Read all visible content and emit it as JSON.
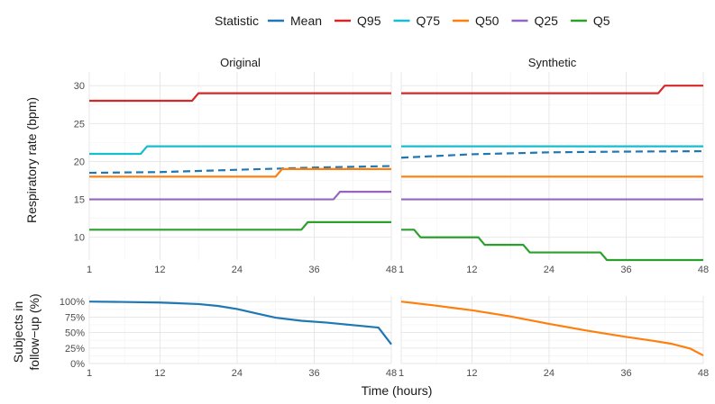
{
  "chart_data": {
    "type": "line",
    "legend": {
      "title": "Statistic",
      "position": "top",
      "items": [
        {
          "name": "Mean",
          "color": "#1f77b4",
          "dashed": true
        },
        {
          "name": "Q95",
          "color": "#d62728",
          "dashed": false
        },
        {
          "name": "Q75",
          "color": "#17becf",
          "dashed": false
        },
        {
          "name": "Q50",
          "color": "#ff7f0e",
          "dashed": false
        },
        {
          "name": "Q25",
          "color": "#9467bd",
          "dashed": false
        },
        {
          "name": "Q5",
          "color": "#2ca02c",
          "dashed": false
        }
      ]
    },
    "xlabel": "Time (hours)",
    "xlim": [
      1,
      48
    ],
    "xticks": [
      1,
      12,
      24,
      36,
      48
    ],
    "top": {
      "ylabel": "Respiratory rate (bpm)",
      "ylim": [
        7,
        31.8
      ],
      "yticks": [
        10,
        15,
        20,
        25,
        30
      ],
      "panels": [
        {
          "title": "Original",
          "series": [
            {
              "name": "Q95",
              "x": [
                1,
                17,
                18,
                48
              ],
              "y": [
                28,
                28,
                29,
                29
              ]
            },
            {
              "name": "Q75",
              "x": [
                1,
                9,
                10,
                48
              ],
              "y": [
                21,
                21,
                22,
                22
              ]
            },
            {
              "name": "Mean",
              "x": [
                1,
                12,
                24,
                36,
                48
              ],
              "y": [
                18.5,
                18.6,
                18.9,
                19.2,
                19.4
              ]
            },
            {
              "name": "Q50",
              "x": [
                1,
                30,
                31,
                48
              ],
              "y": [
                18,
                18,
                19,
                19
              ]
            },
            {
              "name": "Q25",
              "x": [
                1,
                39,
                40,
                48
              ],
              "y": [
                15,
                15,
                16,
                16
              ]
            },
            {
              "name": "Q5",
              "x": [
                1,
                34,
                35,
                48
              ],
              "y": [
                11,
                11,
                12,
                12
              ]
            }
          ]
        },
        {
          "title": "Synthetic",
          "series": [
            {
              "name": "Q95",
              "x": [
                1,
                41,
                42,
                48
              ],
              "y": [
                29,
                29,
                30,
                30
              ]
            },
            {
              "name": "Q75",
              "x": [
                1,
                48
              ],
              "y": [
                22,
                22
              ]
            },
            {
              "name": "Mean",
              "x": [
                1,
                12,
                24,
                36,
                48
              ],
              "y": [
                20.5,
                20.95,
                21.2,
                21.3,
                21.35
              ]
            },
            {
              "name": "Q50",
              "x": [
                1,
                48
              ],
              "y": [
                18,
                18
              ]
            },
            {
              "name": "Q25",
              "x": [
                1,
                48
              ],
              "y": [
                15,
                15
              ]
            },
            {
              "name": "Q5",
              "x": [
                1,
                3,
                4,
                13,
                14,
                20,
                21,
                32,
                33,
                48
              ],
              "y": [
                11,
                11,
                10,
                10,
                9,
                9,
                8,
                8,
                7,
                7
              ]
            }
          ]
        }
      ]
    },
    "bottom": {
      "ylabel_lines": [
        "Subjects in",
        "follow−up (%)"
      ],
      "ylim": [
        0,
        1.09
      ],
      "yticks": [
        0,
        0.25,
        0.5,
        0.75,
        1.0
      ],
      "ytick_labels": [
        "0%",
        "25%",
        "50%",
        "75%",
        "100%"
      ],
      "panels": [
        {
          "title": "Original",
          "color": "#1f77b4",
          "x": [
            1,
            6,
            12,
            18,
            21,
            24,
            27,
            30,
            34,
            38,
            42,
            46,
            48
          ],
          "y": [
            1.0,
            0.995,
            0.985,
            0.96,
            0.93,
            0.88,
            0.81,
            0.74,
            0.69,
            0.66,
            0.62,
            0.58,
            0.31
          ]
        },
        {
          "title": "Synthetic",
          "color": "#ff7f0e",
          "x": [
            1,
            6,
            12,
            18,
            24,
            30,
            36,
            40,
            43,
            46,
            48
          ],
          "y": [
            1.0,
            0.94,
            0.86,
            0.76,
            0.64,
            0.53,
            0.43,
            0.37,
            0.32,
            0.24,
            0.13
          ]
        }
      ]
    }
  }
}
